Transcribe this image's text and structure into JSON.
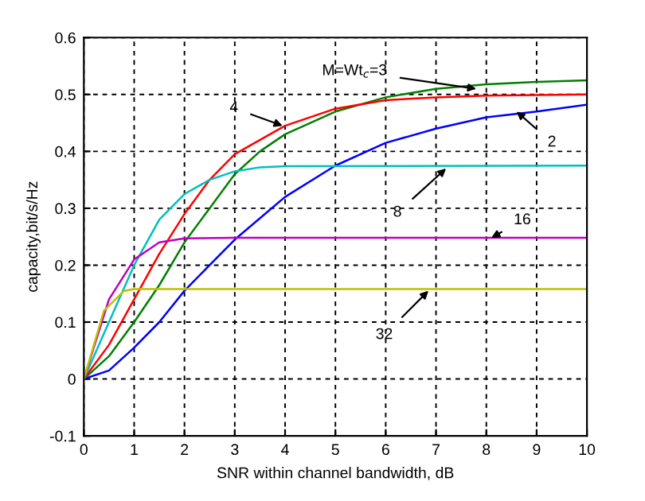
{
  "chart_data": {
    "type": "line",
    "xlabel": "SNR within channel bandwidth, dB",
    "ylabel": "capacity,bit/s/Hz",
    "xlim": [
      0,
      10
    ],
    "ylim": [
      -0.1,
      0.6
    ],
    "xticks": [
      0,
      1,
      2,
      3,
      4,
      5,
      6,
      7,
      8,
      9,
      10
    ],
    "yticks": [
      -0.1,
      0,
      0.1,
      0.2,
      0.3,
      0.4,
      0.5,
      0.6
    ],
    "grid": true,
    "line_style": "solid",
    "series": [
      {
        "color": "#0000ff",
        "x": [
          0,
          0.5,
          1,
          1.5,
          2,
          2.5,
          3,
          4,
          5,
          6,
          7,
          8,
          9,
          10
        ],
        "values": [
          0,
          0.015,
          0.055,
          0.1,
          0.155,
          0.2,
          0.245,
          0.32,
          0.375,
          0.415,
          0.44,
          0.46,
          0.47,
          0.482
        ]
      },
      {
        "color": "#008000",
        "x": [
          0,
          0.5,
          1,
          1.5,
          2,
          2.5,
          3,
          3.5,
          4,
          5,
          6,
          7,
          8,
          9,
          10
        ],
        "values": [
          0,
          0.04,
          0.1,
          0.165,
          0.24,
          0.3,
          0.36,
          0.4,
          0.43,
          0.47,
          0.495,
          0.51,
          0.518,
          0.522,
          0.525
        ]
      },
      {
        "color": "#ff0000",
        "x": [
          0,
          0.5,
          1,
          1.5,
          2,
          2.5,
          3,
          4,
          5,
          6,
          7,
          8,
          10
        ],
        "values": [
          0,
          0.06,
          0.14,
          0.22,
          0.29,
          0.35,
          0.395,
          0.445,
          0.475,
          0.49,
          0.495,
          0.498,
          0.5
        ]
      },
      {
        "color": "#00bfbf",
        "x": [
          0,
          0.5,
          1,
          1.5,
          2,
          2.5,
          3,
          3.5,
          4,
          10
        ],
        "values": [
          0,
          0.1,
          0.2,
          0.28,
          0.325,
          0.35,
          0.365,
          0.372,
          0.374,
          0.375
        ]
      },
      {
        "color": "#bf00bf",
        "x": [
          0,
          0.5,
          1,
          1.5,
          2,
          3,
          10
        ],
        "values": [
          0,
          0.14,
          0.21,
          0.24,
          0.247,
          0.248,
          0.248
        ]
      },
      {
        "color": "#bfbf00",
        "x": [
          0,
          0.4,
          0.8,
          1,
          10
        ],
        "values": [
          0,
          0.12,
          0.155,
          0.158,
          0.158
        ]
      }
    ],
    "annotations": [
      {
        "text": "M=Wt$_{c}$=3",
        "x": 7.8,
        "y": 0.51
      },
      {
        "text": "4",
        "x": 3.95,
        "y": 0.445
      },
      {
        "text": "2",
        "x": 8.6,
        "y": 0.47
      },
      {
        "text": "8",
        "x": 7.2,
        "y": 0.37
      },
      {
        "text": "16",
        "x": 8.1,
        "y": 0.248
      },
      {
        "text": "32",
        "x": 6.85,
        "y": 0.155
      }
    ]
  }
}
